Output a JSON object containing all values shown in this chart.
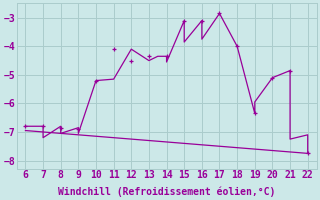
{
  "main_x": [
    6,
    7,
    7,
    8,
    8,
    9,
    9,
    10,
    11,
    12,
    13,
    13.5,
    14,
    14,
    15,
    15,
    16,
    16,
    17,
    18,
    19,
    19,
    20,
    21,
    21,
    22,
    22
  ],
  "main_y": [
    -6.8,
    -6.8,
    -7.2,
    -6.8,
    -7.05,
    -6.85,
    -7.05,
    -5.2,
    -5.15,
    -4.1,
    -4.5,
    -4.35,
    -4.35,
    -4.55,
    -3.1,
    -3.85,
    -3.1,
    -3.75,
    -2.85,
    -4.0,
    -6.35,
    -5.95,
    -5.1,
    -4.85,
    -7.25,
    -7.1,
    -7.75
  ],
  "trend_x": [
    6,
    7,
    8,
    9,
    10,
    11,
    12,
    13,
    14,
    15,
    16,
    17,
    18,
    19,
    20,
    21,
    22
  ],
  "trend_y": [
    -6.95,
    -7.0,
    -7.05,
    -7.1,
    -7.15,
    -7.2,
    -7.25,
    -7.3,
    -7.35,
    -7.4,
    -7.45,
    -7.5,
    -7.55,
    -7.6,
    -7.65,
    -7.7,
    -7.75
  ],
  "marker_x": [
    6,
    7,
    8,
    9,
    10,
    11,
    12,
    13,
    14,
    15,
    16,
    17,
    18,
    19,
    20,
    21,
    22
  ],
  "marker_y": [
    -6.8,
    -6.8,
    -6.85,
    -6.9,
    -5.2,
    -4.1,
    -4.5,
    -4.35,
    -4.35,
    -3.1,
    -3.1,
    -2.85,
    -4.0,
    -6.35,
    -5.1,
    -4.85,
    -7.75
  ],
  "line_color": "#990099",
  "bg_color": "#cce8e8",
  "grid_color": "#aacccc",
  "xlabel": "Windchill (Refroidissement éolien,°C)",
  "xlim": [
    5.5,
    22.5
  ],
  "ylim": [
    -8.3,
    -2.5
  ],
  "xticks": [
    6,
    7,
    8,
    9,
    10,
    11,
    12,
    13,
    14,
    15,
    16,
    17,
    18,
    19,
    20,
    21,
    22
  ],
  "yticks": [
    -8,
    -7,
    -6,
    -5,
    -4,
    -3
  ],
  "tick_fontsize": 7,
  "label_fontsize": 7
}
